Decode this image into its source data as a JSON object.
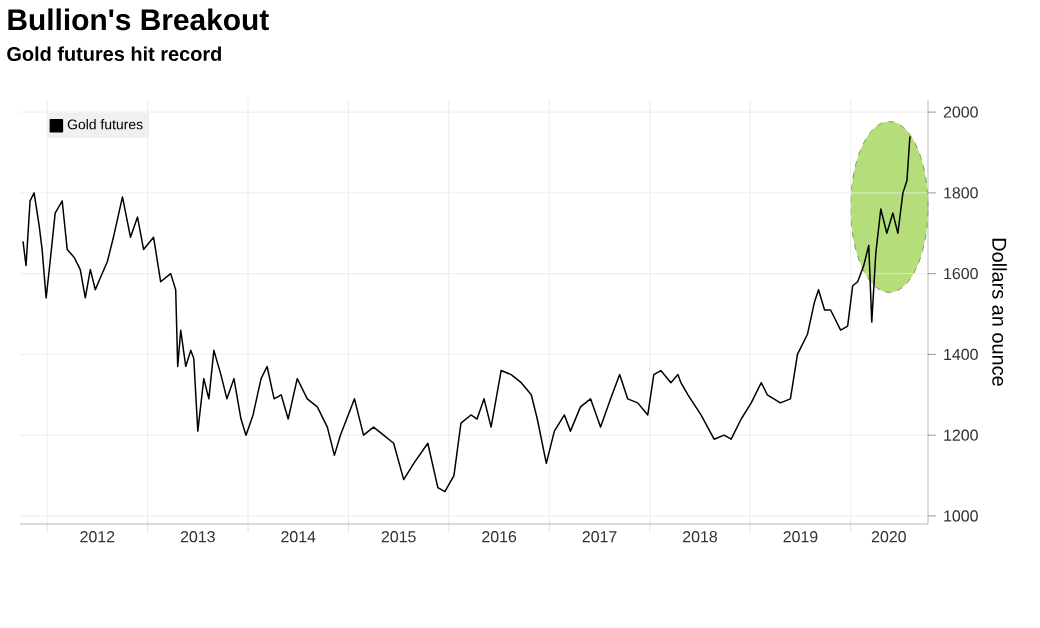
{
  "chart_data": {
    "type": "line",
    "title": "Bullion's Breakout",
    "subtitle": "Gold futures hit record",
    "ylabel": "Dollars an ounce",
    "x": [
      2011.76,
      2011.79,
      2011.83,
      2011.87,
      2011.92,
      2011.95,
      2011.99,
      2012.03,
      2012.08,
      2012.15,
      2012.2,
      2012.27,
      2012.33,
      2012.38,
      2012.43,
      2012.48,
      2012.53,
      2012.6,
      2012.66,
      2012.75,
      2012.83,
      2012.9,
      2012.96,
      2013.06,
      2013.13,
      2013.23,
      2013.28,
      2013.3,
      2013.33,
      2013.38,
      2013.43,
      2013.46,
      2013.5,
      2013.56,
      2013.61,
      2013.66,
      2013.73,
      2013.79,
      2013.86,
      2013.93,
      2013.98,
      2014.05,
      2014.13,
      2014.19,
      2014.26,
      2014.33,
      2014.4,
      2014.49,
      2014.59,
      2014.69,
      2014.79,
      2014.86,
      2014.92,
      2015.06,
      2015.15,
      2015.25,
      2015.35,
      2015.45,
      2015.55,
      2015.65,
      2015.79,
      2015.89,
      2015.96,
      2016.05,
      2016.12,
      2016.22,
      2016.28,
      2016.35,
      2016.42,
      2016.52,
      2016.62,
      2016.72,
      2016.82,
      2016.88,
      2016.97,
      2017.05,
      2017.15,
      2017.21,
      2017.31,
      2017.41,
      2017.51,
      2017.61,
      2017.7,
      2017.78,
      2017.88,
      2017.98,
      2018.04,
      2018.11,
      2018.21,
      2018.28,
      2018.31,
      2018.38,
      2018.51,
      2018.64,
      2018.74,
      2018.81,
      2018.91,
      2019.01,
      2019.11,
      2019.17,
      2019.3,
      2019.4,
      2019.47,
      2019.57,
      2019.64,
      2019.68,
      2019.74,
      2019.8,
      2019.9,
      2019.97,
      2020.02,
      2020.07,
      2020.13,
      2020.18,
      2020.21,
      2020.25,
      2020.3,
      2020.36,
      2020.42,
      2020.47,
      2020.52,
      2020.56,
      2020.59
    ],
    "series": [
      {
        "name": "Gold futures",
        "color": "#000000",
        "values": [
          1680,
          1620,
          1780,
          1800,
          1720,
          1660,
          1540,
          1630,
          1750,
          1780,
          1660,
          1640,
          1610,
          1540,
          1610,
          1560,
          1590,
          1630,
          1690,
          1790,
          1690,
          1740,
          1660,
          1690,
          1580,
          1600,
          1560,
          1370,
          1460,
          1370,
          1410,
          1390,
          1210,
          1340,
          1290,
          1410,
          1350,
          1290,
          1340,
          1240,
          1200,
          1250,
          1340,
          1370,
          1290,
          1300,
          1240,
          1340,
          1290,
          1270,
          1220,
          1150,
          1200,
          1290,
          1200,
          1220,
          1200,
          1180,
          1090,
          1130,
          1180,
          1070,
          1060,
          1100,
          1230,
          1250,
          1240,
          1290,
          1220,
          1360,
          1350,
          1330,
          1300,
          1240,
          1130,
          1210,
          1250,
          1210,
          1270,
          1290,
          1220,
          1290,
          1350,
          1290,
          1280,
          1250,
          1350,
          1360,
          1330,
          1350,
          1330,
          1300,
          1250,
          1190,
          1200,
          1190,
          1240,
          1280,
          1330,
          1300,
          1280,
          1290,
          1400,
          1450,
          1530,
          1560,
          1510,
          1510,
          1460,
          1470,
          1570,
          1580,
          1620,
          1670,
          1480,
          1650,
          1760,
          1700,
          1750,
          1700,
          1800,
          1830,
          1940
        ]
      }
    ],
    "xlim": [
      2011.73,
      2020.77
    ],
    "ylim": [
      980,
      2030
    ],
    "xticks": [
      {
        "value": 2012,
        "label": null
      },
      {
        "value": 2012.5,
        "label": "2012"
      },
      {
        "value": 2013,
        "label": null
      },
      {
        "value": 2013.5,
        "label": "2013"
      },
      {
        "value": 2014,
        "label": null
      },
      {
        "value": 2014.5,
        "label": "2014"
      },
      {
        "value": 2015,
        "label": null
      },
      {
        "value": 2015.5,
        "label": "2015"
      },
      {
        "value": 2016,
        "label": null
      },
      {
        "value": 2016.5,
        "label": "2016"
      },
      {
        "value": 2017,
        "label": null
      },
      {
        "value": 2017.5,
        "label": "2017"
      },
      {
        "value": 2018,
        "label": null
      },
      {
        "value": 2018.5,
        "label": "2018"
      },
      {
        "value": 2019,
        "label": null
      },
      {
        "value": 2019.5,
        "label": "2019"
      },
      {
        "value": 2020,
        "label": null
      },
      {
        "value": 2020.38,
        "label": "2020"
      }
    ],
    "yticks": [
      1000,
      1200,
      1400,
      1600,
      1800,
      2000
    ],
    "grid": true,
    "legend": "top left",
    "line_style": "solid",
    "marker": "none"
  }
}
